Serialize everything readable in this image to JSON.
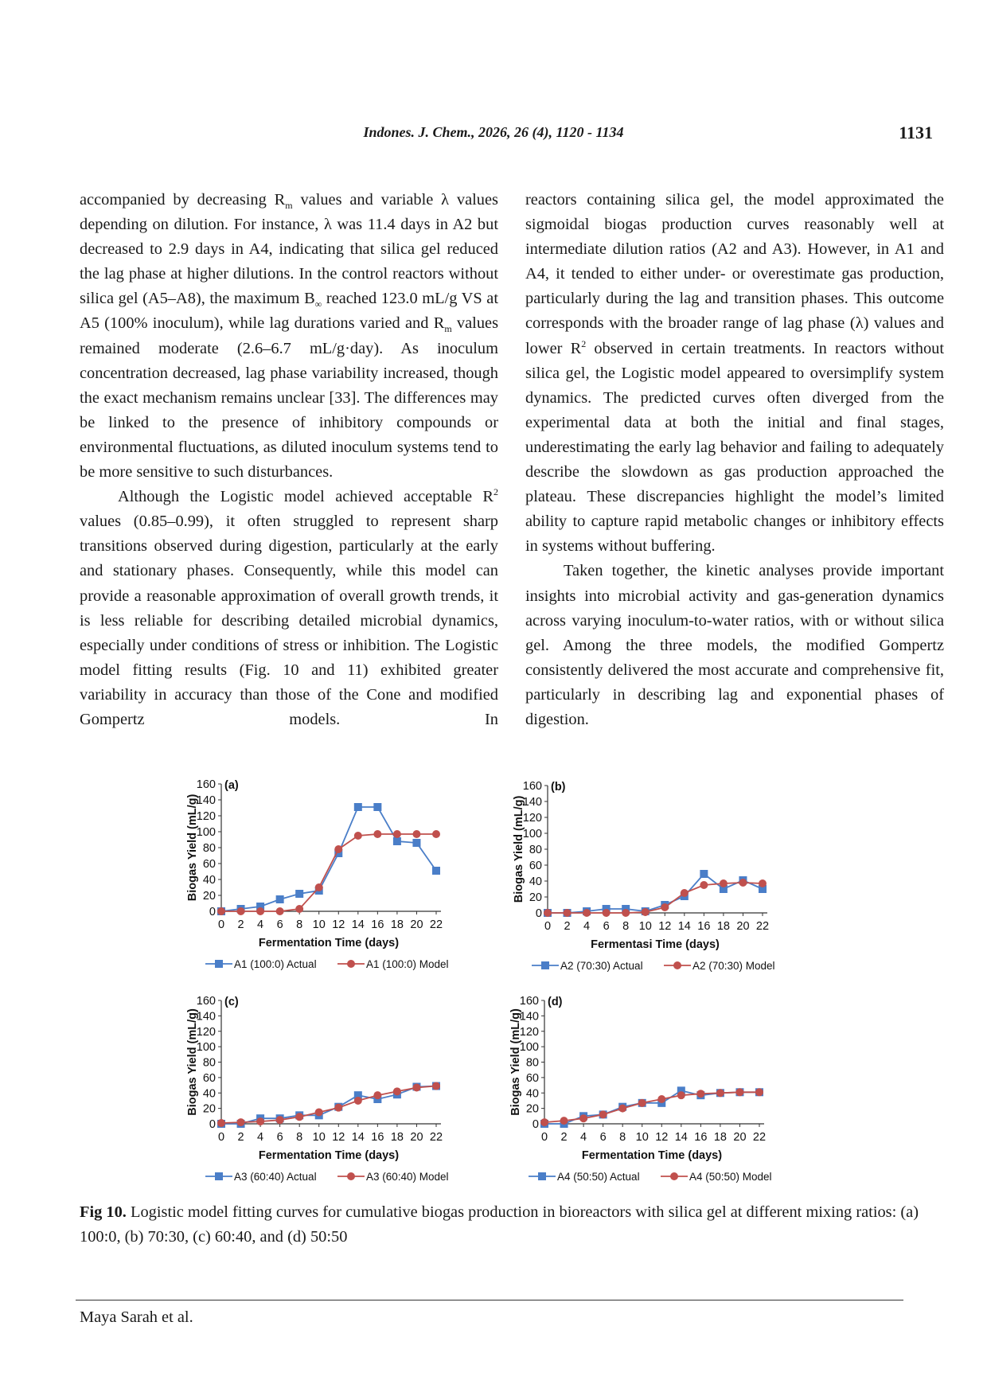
{
  "header": {
    "journal": "Indones. J. Chem., 2026, 26 (4), 1120 - 1134",
    "page_number": "1131"
  },
  "body_text": {
    "left_p1_a": "accompanied by decreasing R",
    "left_p1_a_sub": "m",
    "left_p1_b": " values and variable λ values depending on dilution. For instance, λ was 11.4 days in A2 but decreased to 2.9 days in A4, indicating that silica gel reduced the lag phase at higher dilutions. In the control reactors without silica gel (A5–A8), the maximum B",
    "left_p1_b_sub": "∞",
    "left_p1_c": " reached 123.0 mL/g VS at A5 (100% inoculum), while lag durations varied and R",
    "left_p1_c_sub": "m",
    "left_p1_d": " values remained moderate (2.6–6.7 mL/g·day). As inoculum concentration decreased, lag phase variability increased, though the exact mechanism remains unclear [33]. The differences may be linked to the presence of inhibitory compounds or environmental fluctuations, as diluted inoculum systems tend to be more sensitive to such disturbances.",
    "left_p2_a": "Although the Logistic model achieved acceptable R",
    "left_p2_a_sup": "2",
    "left_p2_b": " values (0.85–0.99), it often struggled to represent sharp transitions observed during digestion, particularly at the early and stationary phases. Consequently, while this model can provide a reasonable approximation of overall growth trends, it is less reliable for describing detailed microbial dynamics, especially under conditions of stress or inhibition. The Logistic model fitting results (Fig. 10 and 11) exhibited greater variability in accuracy than those of the Cone and modified Gompertz models. In",
    "right_p1_a": "reactors containing silica gel, the model approximated the sigmoidal biogas production curves reasonably well at intermediate dilution ratios (A2 and A3). However, in A1 and A4, it tended to either under- or overestimate gas production, particularly during the lag and transition phases. This outcome corresponds with the broader range of lag phase (λ) values and lower R",
    "right_p1_a_sup": "2",
    "right_p1_b": " observed in certain treatments. In reactors without silica gel, the Logistic model appeared to oversimplify system dynamics. The predicted curves often diverged from the experimental data at both the initial and final stages, underestimating the early lag behavior and failing to adequately describe the slowdown as gas production approached the plateau. These discrepancies highlight the model’s limited ability to capture rapid metabolic changes or inhibitory effects in systems without buffering.",
    "right_p2": "Taken together, the kinetic analyses provide important insights into microbial activity and gas-generation dynamics across varying inoculum-to-water ratios, with or without silica gel. Among the three models, the modified Gompertz consistently delivered the most accurate and comprehensive fit, particularly in describing lag and exponential phases of digestion."
  },
  "colors": {
    "actual": "#4a7ec8",
    "model": "#c0504d"
  },
  "chart_data": [
    {
      "type": "line",
      "panel_label": "(a)",
      "xlabel": "Fermentation Time (days)",
      "ylabel": "Biogas Yield (mL/g)",
      "x_ticks": [
        "0",
        "2",
        "4",
        "6",
        "8",
        "10",
        "12",
        "14",
        "16",
        "18",
        "20",
        "22"
      ],
      "y_ticks": [
        "0",
        "20",
        "40",
        "60",
        "80",
        "100",
        "120",
        "140",
        "160"
      ],
      "xlim": [
        0,
        22
      ],
      "ylim": [
        0,
        160
      ],
      "series": [
        {
          "name": "A1 (100:0) Actual",
          "x": [
            0,
            2,
            4,
            6,
            8,
            10,
            12,
            14,
            16,
            18,
            20,
            22
          ],
          "y": [
            0,
            3,
            6,
            15,
            22,
            26,
            73,
            131,
            131,
            88,
            86,
            51
          ]
        },
        {
          "name": "A1 (100:0) Model",
          "x": [
            0,
            2,
            4,
            6,
            8,
            10,
            12,
            14,
            16,
            18,
            20,
            22
          ],
          "y": [
            0,
            0,
            0,
            0,
            3,
            30,
            78,
            95,
            97,
            97,
            97,
            97
          ]
        }
      ]
    },
    {
      "type": "line",
      "panel_label": "(b)",
      "xlabel": "Fermentasi Time (days)",
      "ylabel": "Biogas Yield (mL/g)",
      "x_ticks": [
        "0",
        "2",
        "4",
        "6",
        "8",
        "10",
        "12",
        "14",
        "16",
        "18",
        "20",
        "22"
      ],
      "y_ticks": [
        "0",
        "20",
        "40",
        "60",
        "80",
        "100",
        "120",
        "140",
        "160"
      ],
      "xlim": [
        0,
        22
      ],
      "ylim": [
        0,
        160
      ],
      "series": [
        {
          "name": "A2 (70:30) Actual",
          "x": [
            0,
            2,
            4,
            6,
            8,
            10,
            12,
            14,
            16,
            18,
            20,
            22
          ],
          "y": [
            0,
            0,
            2,
            5,
            5,
            2,
            10,
            21,
            49,
            30,
            41,
            30
          ]
        },
        {
          "name": "A2 (70:30) Model",
          "x": [
            0,
            2,
            4,
            6,
            8,
            10,
            12,
            14,
            16,
            18,
            20,
            22
          ],
          "y": [
            0,
            0,
            0,
            0,
            0,
            1,
            7,
            25,
            35,
            37,
            38,
            37
          ]
        }
      ]
    },
    {
      "type": "line",
      "panel_label": "(c)",
      "xlabel": "Fermentation Time (days)",
      "ylabel": "Biogas Yield (mL/g)",
      "x_ticks": [
        "0",
        "2",
        "4",
        "6",
        "8",
        "10",
        "12",
        "14",
        "16",
        "18",
        "20",
        "22"
      ],
      "y_ticks": [
        "0",
        "20",
        "40",
        "60",
        "80",
        "100",
        "120",
        "140",
        "160"
      ],
      "xlim": [
        0,
        22
      ],
      "ylim": [
        0,
        160
      ],
      "series": [
        {
          "name": "A3 (60:40) Actual",
          "x": [
            0,
            2,
            4,
            6,
            8,
            10,
            12,
            14,
            16,
            18,
            20,
            22
          ],
          "y": [
            0,
            0,
            7,
            7,
            11,
            11,
            22,
            37,
            32,
            38,
            48,
            49
          ]
        },
        {
          "name": "A3 (60:40) Model",
          "x": [
            0,
            2,
            4,
            6,
            8,
            10,
            12,
            14,
            16,
            18,
            20,
            22
          ],
          "y": [
            1,
            2,
            3,
            5,
            9,
            15,
            21,
            30,
            37,
            42,
            47,
            49
          ]
        }
      ]
    },
    {
      "type": "line",
      "panel_label": "(d)",
      "xlabel": "Fermentation Time (days)",
      "ylabel": "Biogas Yield (mL/g)",
      "x_ticks": [
        "0",
        "2",
        "4",
        "6",
        "8",
        "10",
        "12",
        "14",
        "16",
        "18",
        "20",
        "22"
      ],
      "y_ticks": [
        "0",
        "20",
        "40",
        "60",
        "80",
        "100",
        "120",
        "140",
        "160"
      ],
      "xlim": [
        0,
        22
      ],
      "ylim": [
        0,
        160
      ],
      "series": [
        {
          "name": "A4 (50:50) Actual",
          "x": [
            0,
            2,
            4,
            6,
            8,
            10,
            12,
            14,
            16,
            18,
            20,
            22
          ],
          "y": [
            0,
            0,
            10,
            12,
            22,
            27,
            27,
            43,
            37,
            40,
            41,
            41
          ]
        },
        {
          "name": "A4 (50:50) Model",
          "x": [
            0,
            2,
            4,
            6,
            8,
            10,
            12,
            14,
            16,
            18,
            20,
            22
          ],
          "y": [
            2,
            4,
            7,
            12,
            20,
            27,
            32,
            37,
            39,
            40,
            41,
            41
          ]
        }
      ]
    }
  ],
  "caption": {
    "label": "Fig 10.",
    "text": " Logistic model fitting curves for cumulative biogas production in bioreactors with silica gel at different mixing ratios: (a) 100:0, (b) 70:30, (c) 60:40, and (d) 50:50"
  },
  "footer": {
    "author": "Maya Sarah et al."
  }
}
